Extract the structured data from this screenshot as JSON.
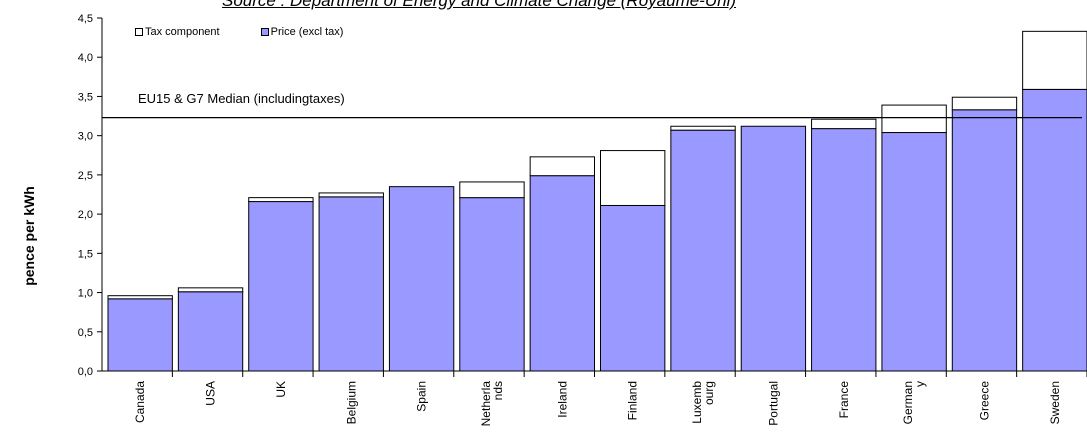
{
  "chart_data": {
    "type": "bar",
    "stacked": true,
    "source": "Source : Department of Energy and Climate Change (Royaume-Uni)",
    "ylabel": "pence per kWh",
    "ylim": [
      0,
      4.5
    ],
    "yticks": [
      "0,0",
      "0,5",
      "1,0",
      "1,5",
      "2,0",
      "2,5",
      "3,0",
      "3,5",
      "4,0",
      "4,5"
    ],
    "categories": [
      "Canada",
      "USA",
      "UK",
      "Belgium",
      "Spain",
      "Netherla nds",
      "Ireland",
      "Finland",
      "Luxemb ourg",
      "Portugal",
      "France",
      "German y",
      "Greece",
      "Sweden"
    ],
    "series": [
      {
        "name": "Price (excl tax)",
        "color": "#9999ff",
        "values": [
          0.92,
          1.01,
          2.16,
          2.22,
          2.35,
          2.21,
          2.49,
          2.11,
          3.07,
          3.12,
          3.09,
          3.04,
          3.33,
          3.59
        ]
      },
      {
        "name": "Tax component",
        "color": "#ffffff",
        "values": [
          0.04,
          0.05,
          0.05,
          0.05,
          0.0,
          0.2,
          0.24,
          0.7,
          0.05,
          0.0,
          0.12,
          0.35,
          0.16,
          0.74
        ]
      }
    ],
    "reference_line": {
      "label": "EU15 & G7 Median (includingtaxes)",
      "value": 3.23
    },
    "grid": false,
    "legend_position": "top-left"
  }
}
